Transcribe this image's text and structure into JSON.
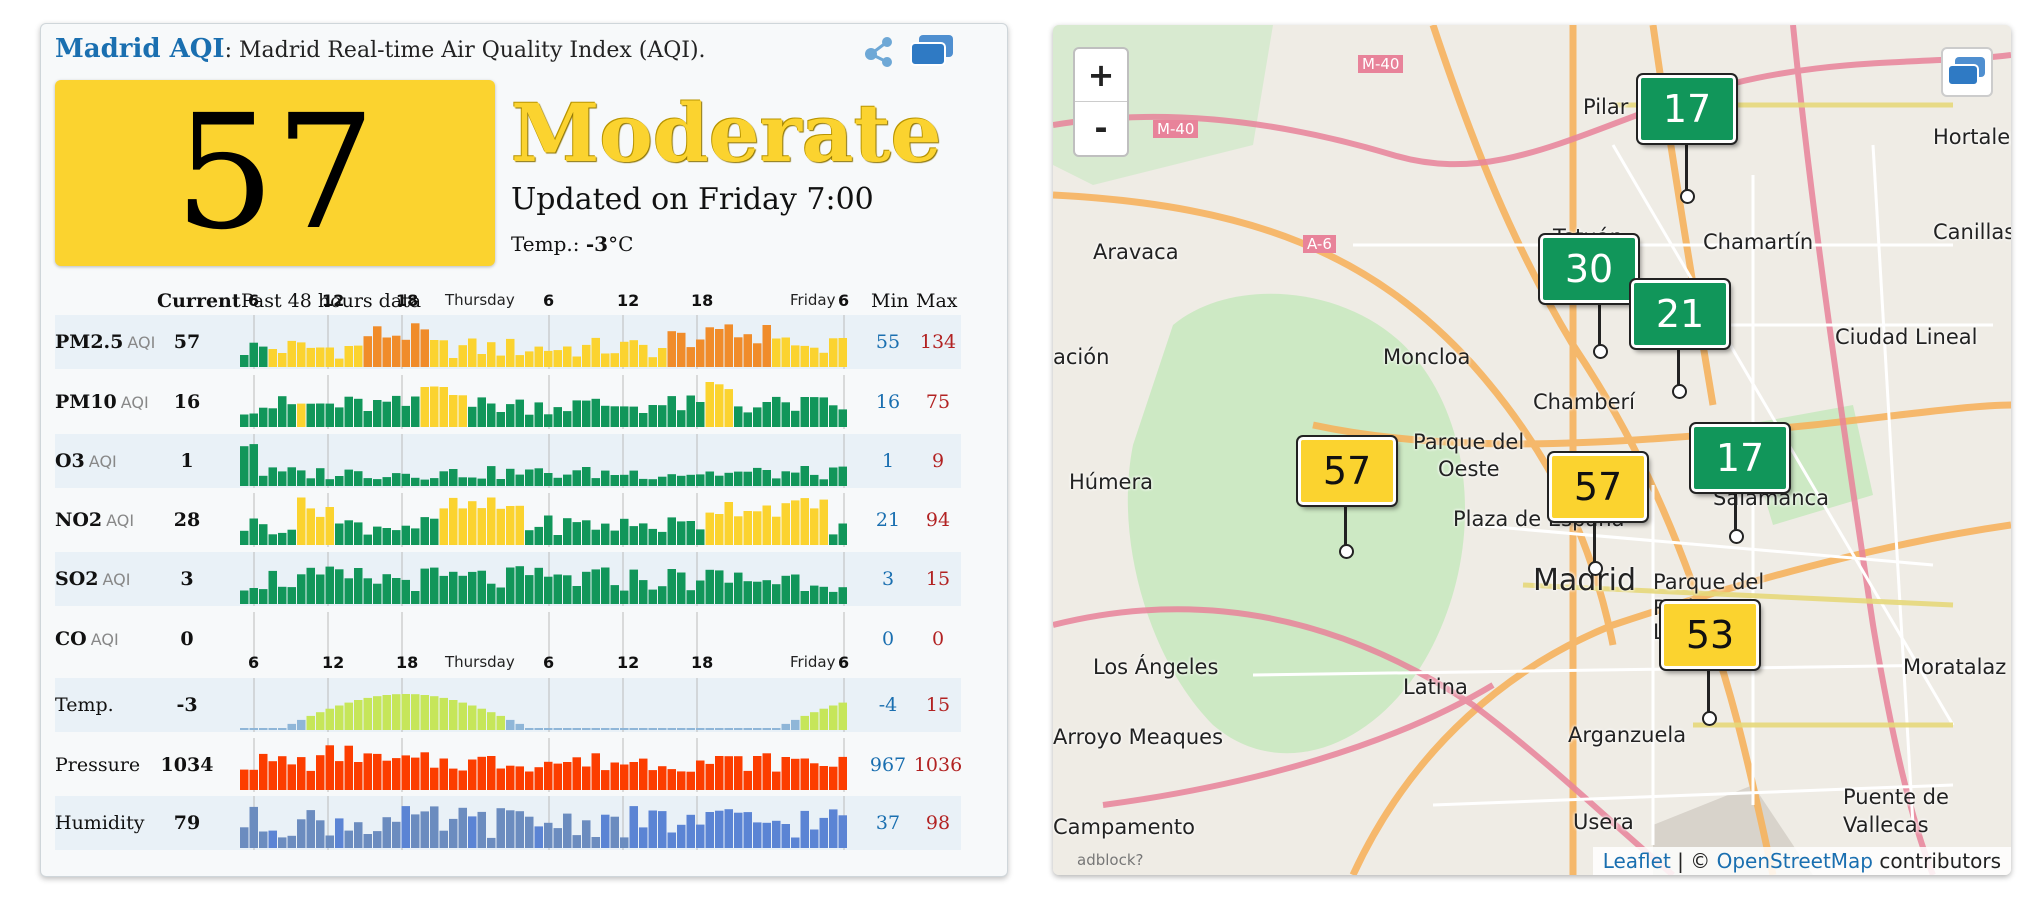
{
  "header": {
    "city": "Madrid AQI",
    "subtitle": ": Madrid Real-time Air Quality Index (AQI)."
  },
  "aqi": {
    "value": "57",
    "level": "Moderate",
    "updated": "Updated on Friday 7:00",
    "temp_label": "Temp.: ",
    "temp_value": "-3",
    "temp_unit": "°C",
    "level_color": "#fbd32f"
  },
  "table": {
    "col_current": "Current",
    "col_past": "Past 48 hours data",
    "col_min": "Min",
    "col_max": "Max",
    "hour_ticks": [
      "6",
      "12",
      "18",
      "6",
      "12",
      "18",
      "6"
    ],
    "day_labels": [
      "Thursday",
      "Friday"
    ],
    "rows": [
      {
        "name": "PM2.5",
        "unit": "AQI",
        "current": "57",
        "min": "55",
        "max": "134"
      },
      {
        "name": "PM10",
        "unit": "AQI",
        "current": "16",
        "min": "16",
        "max": "75"
      },
      {
        "name": "O3",
        "unit": "AQI",
        "current": "1",
        "min": "1",
        "max": "9"
      },
      {
        "name": "NO2",
        "unit": "AQI",
        "current": "28",
        "min": "21",
        "max": "94"
      },
      {
        "name": "SO2",
        "unit": "AQI",
        "current": "3",
        "min": "3",
        "max": "15"
      },
      {
        "name": "CO",
        "unit": "AQI",
        "current": "0",
        "min": "0",
        "max": "0"
      },
      {
        "name": "Temp.",
        "unit": "",
        "current": "-3",
        "min": "-4",
        "max": "15"
      },
      {
        "name": "Pressure",
        "unit": "",
        "current": "1034",
        "min": "967",
        "max": "1036"
      },
      {
        "name": "Humidity",
        "unit": "",
        "current": "79",
        "min": "37",
        "max": "98"
      }
    ]
  },
  "map": {
    "zoom_in": "+",
    "zoom_out": "-",
    "adblock": "adblock?",
    "attribution": {
      "leaflet": "Leaflet",
      "sep": " | © ",
      "osm": "OpenStreetMap",
      "tail": " contributors"
    },
    "places": [
      "Pilar",
      "Hortaleza",
      "Tetuán",
      "Chamartín",
      "Canillas",
      "Aravaca",
      "Ciudad Lineal",
      "ación",
      "Moncloa",
      "Chamberí",
      "Húmera",
      "Parque del",
      "Oeste",
      "Plaza de España",
      "Madrid",
      "Salamanca",
      "Parque del",
      "Retiro",
      "Lavapiés",
      "Los Ángeles",
      "Latina",
      "Moratalaz",
      "Arroyo Meaques",
      "Arganzuela",
      "Campamento",
      "Usera",
      "Puente de",
      "Vallecas",
      "M-40",
      "M-40",
      "A-6"
    ],
    "markers": [
      {
        "value": "17",
        "status": "good"
      },
      {
        "value": "30",
        "status": "good"
      },
      {
        "value": "21",
        "status": "good"
      },
      {
        "value": "17",
        "status": "good"
      },
      {
        "value": "57",
        "status": "moderate"
      },
      {
        "value": "57",
        "status": "moderate"
      },
      {
        "value": "53",
        "status": "moderate"
      }
    ]
  },
  "colors": {
    "good": "#11965a",
    "moderate": "#fbd32f",
    "unhealthy_sensitive": "#f08c2a",
    "temp": "#c6e65a",
    "pressure": "#fc3d00",
    "humidity": "#5073c4"
  }
}
